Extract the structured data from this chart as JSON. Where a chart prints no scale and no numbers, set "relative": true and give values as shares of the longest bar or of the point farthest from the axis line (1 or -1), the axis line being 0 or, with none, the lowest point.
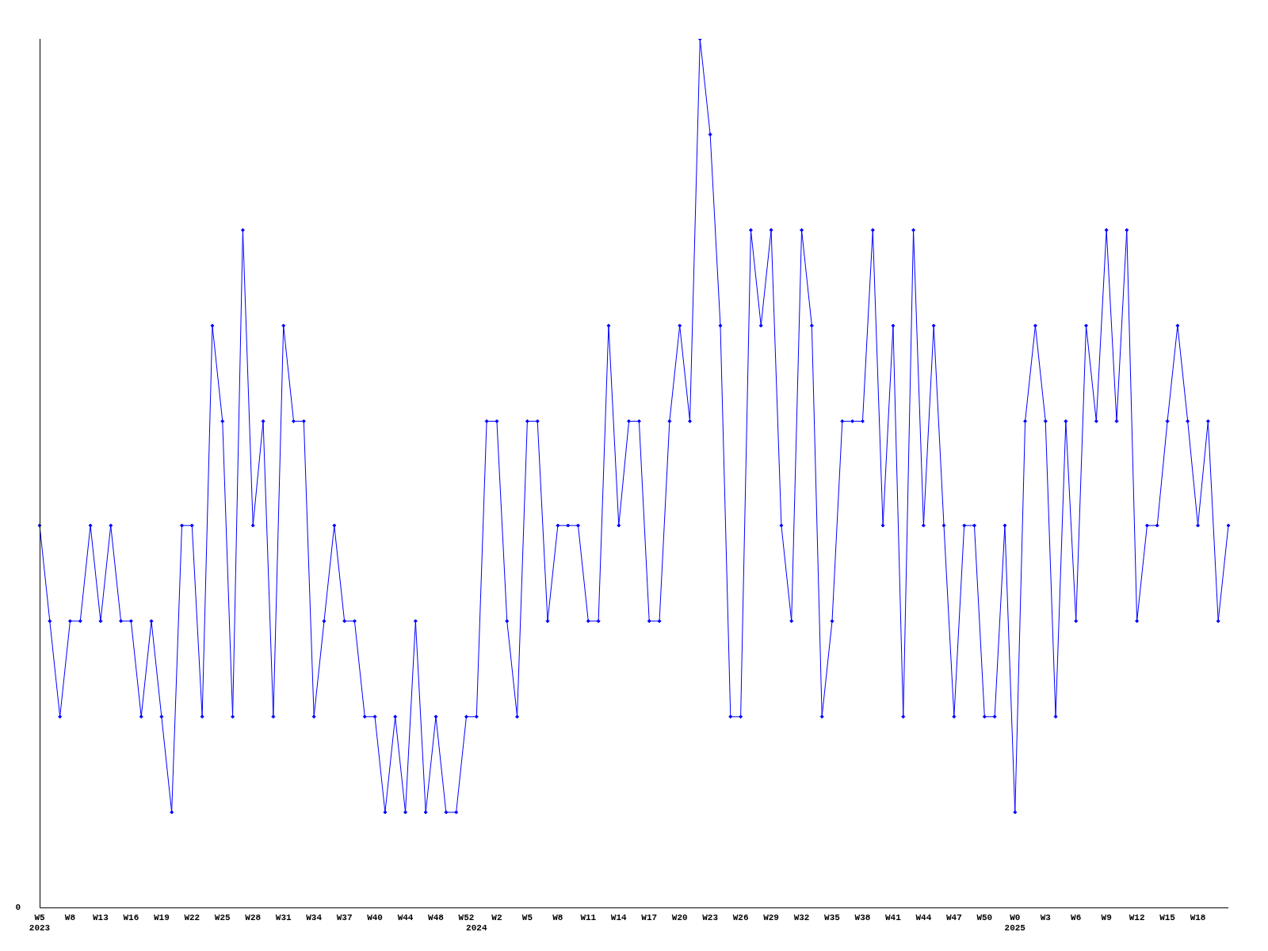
{
  "chart_data": {
    "type": "line",
    "relative": true,
    "marker": "diamond",
    "line_style": "solid",
    "grid": false,
    "legend": false,
    "categories": [
      "W5\n2023",
      null,
      null,
      "W8",
      null,
      null,
      "W13",
      null,
      null,
      "W16",
      null,
      null,
      "W19",
      null,
      null,
      "W22",
      null,
      null,
      "W25",
      null,
      null,
      "W28",
      null,
      null,
      "W31",
      null,
      null,
      "W34",
      null,
      null,
      "W37",
      null,
      null,
      "W40",
      null,
      null,
      "W44",
      null,
      null,
      "W48",
      null,
      null,
      "W52",
      "\n2024",
      null,
      "W2",
      null,
      null,
      "W5",
      null,
      null,
      "W8",
      null,
      null,
      "W11",
      null,
      null,
      "W14",
      null,
      null,
      "W17",
      null,
      null,
      "W20",
      null,
      null,
      "W23",
      null,
      null,
      "W26",
      null,
      null,
      "W29",
      null,
      null,
      "W32",
      null,
      null,
      "W35",
      null,
      null,
      "W38",
      null,
      null,
      "W41",
      null,
      null,
      "W44",
      null,
      null,
      "W47",
      null,
      null,
      "W50",
      null,
      null,
      "W0\n2025",
      null,
      null,
      "W3",
      null,
      null,
      "W6",
      null,
      null,
      "W9",
      null,
      null,
      "W12",
      null,
      null,
      "W15",
      null,
      null,
      "W18",
      null,
      null,
      null
    ],
    "series": [
      {
        "color": "#0000ff",
        "values": [
          0.44,
          0.33,
          0.22,
          0.33,
          0.33,
          0.44,
          0.33,
          0.44,
          0.33,
          0.33,
          0.22,
          0.33,
          0.22,
          0.11,
          0.44,
          0.44,
          0.22,
          0.67,
          0.56,
          0.22,
          0.78,
          0.44,
          0.56,
          0.22,
          0.67,
          0.56,
          0.56,
          0.22,
          0.33,
          0.44,
          0.33,
          0.33,
          0.22,
          0.22,
          0.11,
          0.22,
          0.11,
          0.33,
          0.11,
          0.22,
          0.11,
          0.11,
          0.22,
          0.22,
          0.56,
          0.56,
          0.33,
          0.22,
          0.56,
          0.56,
          0.33,
          0.44,
          0.44,
          0.44,
          0.33,
          0.33,
          0.67,
          0.44,
          0.56,
          0.56,
          0.33,
          0.33,
          0.56,
          0.67,
          0.56,
          1,
          0.89,
          0.67,
          0.22,
          0.22,
          0.78,
          0.67,
          0.78,
          0.44,
          0.33,
          0.78,
          0.67,
          0.22,
          0.33,
          0.56,
          0.56,
          0.56,
          0.78,
          0.44,
          0.67,
          0.22,
          0.78,
          0.44,
          0.67,
          0.44,
          0.22,
          0.44,
          0.44,
          0.22,
          0.22,
          0.44,
          0.11,
          0.56,
          0.67,
          0.56,
          0.22,
          0.56,
          0.33,
          0.67,
          0.56,
          0.78,
          0.56,
          0.78,
          0.33,
          0.44,
          0.44,
          0.56,
          0.67,
          0.56,
          0.44,
          0.56,
          0.33,
          0.44
        ]
      }
    ],
    "annotations": [
      "0"
    ]
  }
}
